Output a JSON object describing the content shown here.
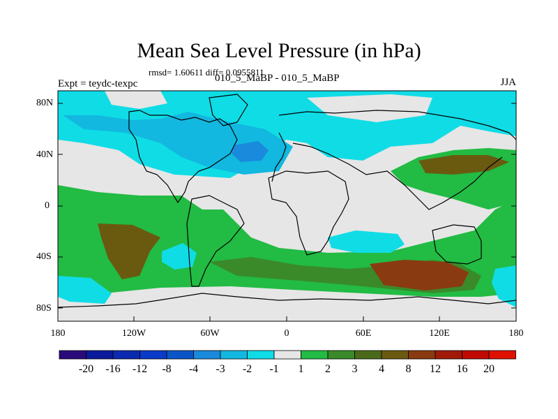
{
  "title": "Mean Sea Level Pressure (in hPa)",
  "stats_text": "rmsd= 1.60611 diff= 0.0955811",
  "expt_label": "Expt = teydc-texpc",
  "runs_label": "010_5_MaBP - 010_5_MaBP",
  "season_label": "JJA",
  "y_ticks": [
    "80N",
    "40N",
    "0",
    "40S",
    "80S"
  ],
  "x_ticks": [
    "180",
    "120W",
    "60W",
    "0",
    "60E",
    "120E",
    "180"
  ],
  "colorbar": {
    "labels": [
      "-20",
      "-16",
      "-12",
      "-8",
      "-4",
      "-3",
      "-2",
      "-1",
      "1",
      "2",
      "3",
      "4",
      "8",
      "12",
      "16",
      "20"
    ],
    "colors": [
      "#2a0a7a",
      "#0a1a9a",
      "#0a2ab0",
      "#0a3ac8",
      "#0a55c8",
      "#1a8adc",
      "#12b8e0",
      "#10dce6",
      "#e6e6e6",
      "#22bb44",
      "#3a8a2a",
      "#4a6a1a",
      "#6a5a10",
      "#8a3a10",
      "#a01a08",
      "#c00a00",
      "#e01000"
    ]
  },
  "colors": {
    "neutral": "#e6e6e6",
    "light_cyan": "#10dce6",
    "cyan": "#12b8e0",
    "blue": "#1a8adc",
    "deep_blue": "#0a55c8",
    "green": "#22bb44",
    "dark_green": "#3a8a2a",
    "olive": "#6a5a10",
    "brown": "#8a3a10",
    "coast": "#000000"
  }
}
